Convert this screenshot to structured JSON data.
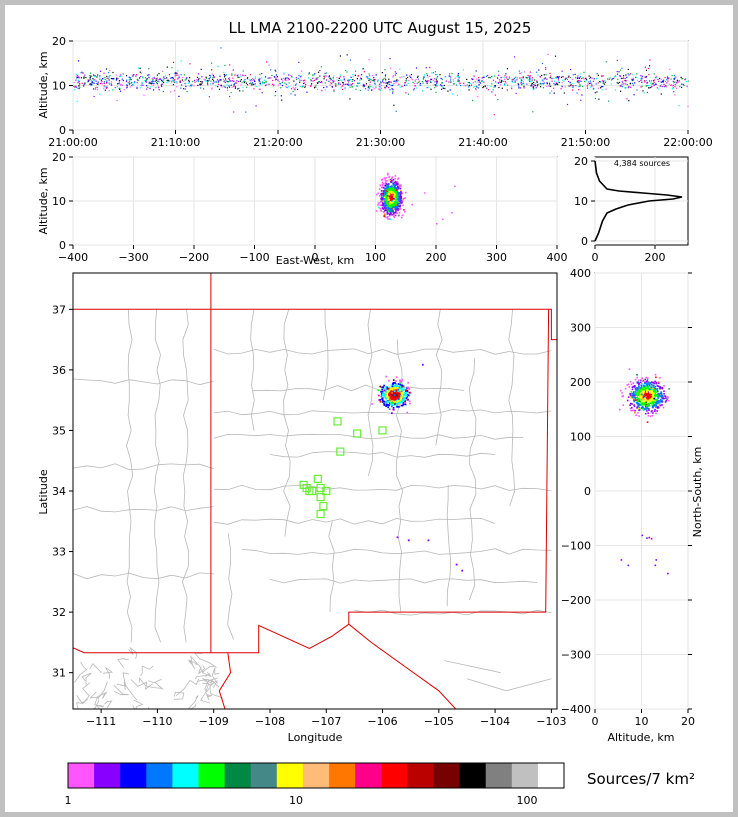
{
  "chart_data": {
    "type": "scatter",
    "title": "LL LMA 2100-2200 UTC August 15, 2025",
    "panels": {
      "time_altitude": {
        "ylabel": "Altitude, km",
        "xticks": [
          "21:00:00",
          "21:10:00",
          "21:20:00",
          "21:30:00",
          "21:40:00",
          "21:50:00",
          "22:00:00"
        ],
        "yticks": [
          0,
          10,
          20
        ],
        "xlim_minutes": [
          0,
          60
        ],
        "ylim": [
          0,
          20
        ],
        "source_band_altitude_km": [
          8,
          14
        ],
        "band_center_km": 11
      },
      "ew_altitude": {
        "ylabel": "Altitude, km",
        "xlabel": "East-West, km",
        "xticks": [
          -400,
          -300,
          -200,
          -100,
          0,
          100,
          200,
          300,
          400
        ],
        "yticks": [
          0,
          10,
          20
        ],
        "xlim": [
          -400,
          400
        ],
        "ylim": [
          0,
          20
        ],
        "cluster": {
          "ew_center_km": 125,
          "alt_center_km": 11
        }
      },
      "histogram": {
        "label": "4,384 sources",
        "xticks": [
          0,
          200
        ],
        "yticks": [
          0,
          10,
          20
        ],
        "xlim": [
          0,
          310
        ],
        "ylim": [
          -1,
          21
        ],
        "profile": [
          [
            0,
            0
          ],
          [
            12,
            2
          ],
          [
            25,
            5
          ],
          [
            40,
            7
          ],
          [
            70,
            8
          ],
          [
            110,
            9
          ],
          [
            180,
            10
          ],
          [
            260,
            10.5
          ],
          [
            290,
            11
          ],
          [
            240,
            11.5
          ],
          [
            160,
            12
          ],
          [
            80,
            12.5
          ],
          [
            40,
            13
          ],
          [
            15,
            15
          ],
          [
            5,
            17
          ],
          [
            0,
            20
          ]
        ]
      },
      "plan_view": {
        "xlabel": "Longitude",
        "ylabel": "Latitude",
        "xticks": [
          -111,
          -110,
          -109,
          -108,
          -107,
          -106,
          -105,
          -104,
          -103
        ],
        "yticks": [
          31,
          32,
          33,
          34,
          35,
          36,
          37
        ],
        "xlim": [
          -111.5,
          -102.9
        ],
        "ylim": [
          30.4,
          37.6
        ],
        "main_cluster": {
          "lon": -105.8,
          "lat": 35.6
        },
        "stations": [
          [
            -107.35,
            34.05
          ],
          [
            -107.25,
            34.0
          ],
          [
            -107.1,
            34.05
          ],
          [
            -107.0,
            34.0
          ],
          [
            -107.15,
            34.2
          ],
          [
            -107.1,
            33.9
          ],
          [
            -107.05,
            33.75
          ],
          [
            -107.1,
            33.62
          ],
          [
            -107.4,
            34.1
          ],
          [
            -106.75,
            34.65
          ],
          [
            -106.8,
            35.15
          ],
          [
            -106.45,
            34.95
          ],
          [
            -106.0,
            35.0
          ],
          [
            -107.3,
            34.0
          ]
        ]
      },
      "ns_altitude": {
        "xlabel": "Altitude, km",
        "ylabel": "North-South, km",
        "xticks": [
          0,
          10,
          20
        ],
        "yticks": [
          -400,
          -300,
          -200,
          -100,
          0,
          100,
          200,
          300,
          400
        ],
        "xlim": [
          0,
          20
        ],
        "ylim": [
          -400,
          400
        ],
        "cluster": {
          "ns_center_km": 175,
          "alt_center_km": 11
        }
      }
    },
    "colorbar": {
      "label": "Sources/7 km²",
      "ticks": [
        "1",
        "10",
        "100"
      ],
      "colors": [
        "#ff55ff",
        "#8800ff",
        "#0000ff",
        "#0077ff",
        "#00ffff",
        "#00ff00",
        "#008844",
        "#448888",
        "#ffff00",
        "#ffbb77",
        "#ff7700",
        "#ff0088",
        "#ff0000",
        "#bb0000",
        "#770000",
        "#000000",
        "#808080",
        "#c0c0c0",
        "#ffffff"
      ]
    }
  }
}
